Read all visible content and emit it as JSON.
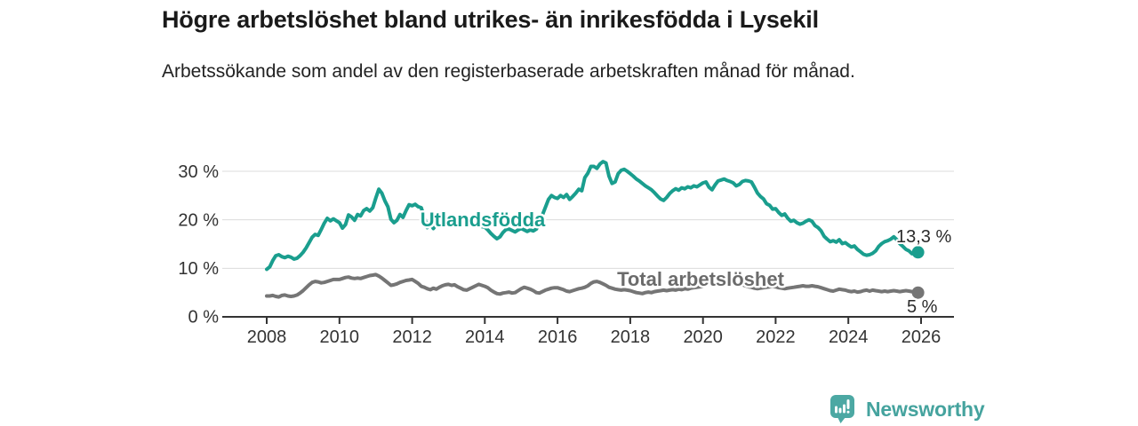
{
  "header": {},
  "chart_data": {
    "type": "line",
    "title": "Högre arbetslöshet bland utrikes- än inrikesfödda i Lysekil",
    "subtitle": "Arbetssökande som andel av den registerbaserade arbetskraften månad för månad.",
    "unit": "%",
    "frequency": "monthly",
    "x_start": "2008-01",
    "x_end": "2025-12",
    "points_per_year": 12,
    "ylim": [
      0,
      33
    ],
    "grid": true,
    "legend": "inline-labels",
    "y_ticks": [
      "0 %",
      "10 %",
      "20 %",
      "30 %"
    ],
    "y_tick_values": [
      0,
      10,
      20,
      30
    ],
    "x_ticks": [
      "2008",
      "2010",
      "2012",
      "2014",
      "2016",
      "2018",
      "2020",
      "2022",
      "2024",
      "2026"
    ],
    "series": [
      {
        "name": "Utlandsfödda",
        "color": "#1a9e8e",
        "end_label": "13,3 %",
        "end_value": 13.3,
        "values": [
          9.8,
          10.3,
          11.6,
          12.6,
          12.8,
          12.4,
          12.2,
          12.5,
          12.3,
          11.9,
          12.1,
          12.6,
          13.3,
          14.2,
          15.3,
          16.4,
          17.0,
          16.8,
          18.0,
          19.3,
          20.3,
          19.8,
          20.2,
          19.8,
          19.4,
          18.3,
          19.0,
          21.0,
          20.6,
          19.9,
          21.1,
          20.8,
          21.9,
          22.3,
          21.8,
          22.5,
          24.5,
          26.3,
          25.5,
          23.9,
          22.7,
          20.1,
          19.4,
          19.9,
          21.1,
          20.5,
          21.9,
          23.1,
          22.9,
          23.2,
          22.7,
          22.5,
          20.5,
          18.4,
          19.2,
          18.2,
          19.0,
          19.5,
          19.8,
          19.6,
          19.9,
          20.2,
          19.7,
          19.4,
          19.8,
          19.2,
          18.9,
          19.3,
          19.6,
          19.1,
          18.8,
          18.6,
          18.5,
          17.9,
          17.2,
          16.6,
          16.1,
          16.5,
          17.4,
          18.0,
          18.1,
          17.8,
          17.5,
          17.9,
          18.2,
          17.9,
          17.6,
          17.9,
          17.7,
          18.1,
          19.3,
          21.0,
          22.6,
          24.2,
          25.0,
          24.6,
          24.4,
          25.0,
          24.6,
          25.2,
          24.2,
          24.8,
          25.5,
          26.3,
          26.0,
          28.7,
          29.6,
          31.0,
          31.0,
          30.6,
          31.5,
          32.0,
          31.7,
          29.0,
          27.5,
          27.8,
          29.5,
          30.2,
          30.4,
          30.0,
          29.5,
          29.0,
          28.4,
          28.0,
          27.5,
          27.0,
          26.6,
          26.2,
          25.6,
          24.9,
          24.3,
          24.0,
          24.6,
          25.4,
          26.0,
          26.4,
          26.1,
          26.6,
          26.4,
          26.8,
          26.6,
          27.0,
          26.8,
          27.2,
          27.6,
          27.8,
          26.7,
          26.2,
          27.2,
          28.0,
          28.2,
          28.4,
          28.1,
          27.9,
          27.6,
          27.0,
          27.3,
          27.9,
          28.1,
          28.0,
          27.8,
          26.7,
          25.5,
          24.8,
          24.3,
          23.3,
          23.0,
          22.2,
          22.3,
          21.5,
          20.9,
          21.2,
          20.3,
          19.7,
          19.9,
          19.4,
          19.1,
          19.3,
          19.7,
          20.0,
          19.7,
          18.8,
          18.4,
          17.7,
          16.6,
          16.0,
          15.5,
          15.7,
          15.4,
          15.9,
          15.1,
          15.3,
          14.8,
          14.4,
          14.6,
          13.9,
          13.4,
          12.9,
          12.7,
          12.8,
          13.1,
          13.6,
          14.5,
          15.1,
          15.5,
          15.7,
          16.0,
          16.5,
          15.9,
          15.1,
          14.5,
          13.9,
          13.6,
          13.0,
          13.1,
          13.3
        ]
      },
      {
        "name": "Total arbetslöshet",
        "color": "#757575",
        "label_color": "#6b6b6b",
        "end_label": "5 %",
        "end_value": 5.0,
        "values": [
          4.3,
          4.3,
          4.4,
          4.2,
          4.1,
          4.4,
          4.5,
          4.3,
          4.2,
          4.3,
          4.5,
          4.9,
          5.4,
          6.0,
          6.6,
          7.1,
          7.3,
          7.2,
          7.0,
          7.1,
          7.3,
          7.5,
          7.7,
          7.7,
          7.7,
          7.9,
          8.1,
          8.2,
          8.0,
          7.9,
          8.0,
          7.9,
          8.1,
          8.3,
          8.5,
          8.6,
          8.7,
          8.4,
          8.0,
          7.5,
          7.0,
          6.5,
          6.6,
          6.8,
          7.1,
          7.3,
          7.5,
          7.6,
          7.7,
          7.3,
          6.9,
          6.3,
          6.1,
          5.8,
          5.6,
          5.9,
          5.7,
          6.1,
          6.4,
          6.6,
          6.7,
          6.5,
          6.6,
          6.2,
          5.9,
          5.6,
          5.5,
          5.8,
          6.1,
          6.4,
          6.7,
          6.5,
          6.3,
          6.0,
          5.5,
          5.1,
          4.8,
          4.7,
          4.9,
          5.0,
          5.1,
          4.9,
          5.0,
          5.4,
          5.8,
          6.1,
          5.9,
          5.7,
          5.4,
          5.0,
          4.9,
          5.2,
          5.5,
          5.7,
          5.9,
          6.0,
          6.0,
          5.8,
          5.6,
          5.3,
          5.2,
          5.4,
          5.6,
          5.8,
          5.9,
          6.1,
          6.4,
          6.9,
          7.2,
          7.3,
          7.1,
          6.8,
          6.5,
          6.1,
          5.9,
          5.7,
          5.6,
          5.5,
          5.6,
          5.5,
          5.4,
          5.2,
          5.0,
          4.9,
          4.8,
          5.0,
          5.1,
          5.0,
          5.2,
          5.3,
          5.4,
          5.5,
          5.4,
          5.5,
          5.6,
          5.5,
          5.7,
          5.6,
          5.8,
          5.7,
          5.9,
          6.0,
          6.1,
          6.2,
          6.3,
          6.5,
          6.8,
          7.2,
          7.4,
          7.3,
          7.1,
          7.0,
          6.9,
          6.8,
          6.7,
          6.6,
          6.7,
          6.6,
          6.4,
          6.2,
          6.1,
          5.9,
          5.8,
          5.9,
          6.0,
          6.1,
          6.2,
          6.3,
          6.2,
          6.0,
          5.9,
          5.8,
          5.9,
          6.0,
          6.1,
          6.2,
          6.3,
          6.4,
          6.3,
          6.3,
          6.4,
          6.3,
          6.2,
          6.0,
          5.8,
          5.6,
          5.4,
          5.3,
          5.5,
          5.7,
          5.6,
          5.5,
          5.3,
          5.2,
          5.3,
          5.1,
          5.2,
          5.4,
          5.5,
          5.3,
          5.5,
          5.4,
          5.3,
          5.2,
          5.3,
          5.2,
          5.3,
          5.4,
          5.3,
          5.2,
          5.3,
          5.4,
          5.3,
          5.2,
          5.1,
          5.0
        ]
      }
    ]
  },
  "branding": {
    "name": "Newsworthy",
    "color": "#45a39e",
    "logo_icon": "speech-bubble-bar-chart-icon"
  }
}
